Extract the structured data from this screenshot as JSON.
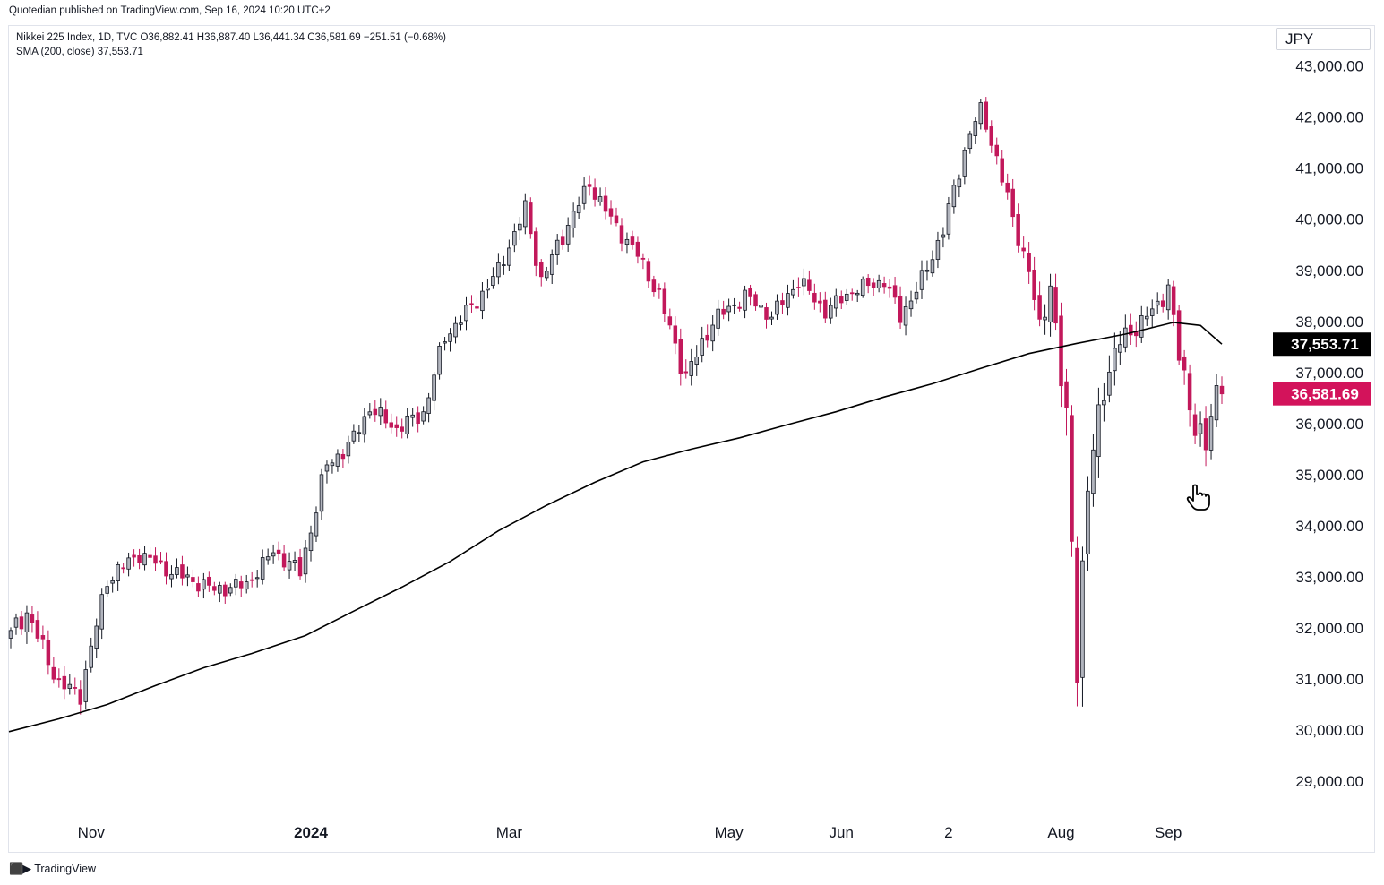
{
  "header": {
    "published": "Quotedian published on TradingView.com, Sep 16, 2024 10:20 UTC+2"
  },
  "legend": {
    "line1": "Nikkei 225 Index, 1D, TVC  O36,882.41  H36,887.40  L36,441.34  C36,581.69  −251.51 (−0.68%)",
    "line2": "SMA (200, close)  37,553.71"
  },
  "currency": "JPY",
  "footer": {
    "logo_icon": "tradingview-logo-icon",
    "brand": "TradingView"
  },
  "colors": {
    "up": "#b2b5be",
    "down": "#c2185b",
    "wick": "#131722",
    "sma": "#000000",
    "sma_label_bg": "#000000",
    "price_label_bg": "#d3135b"
  },
  "chart_data": {
    "type": "candlestick",
    "title": "Nikkei 225 Index, 1D, TVC",
    "ylim": [
      28300,
      43800
    ],
    "y_ticks": [
      29000,
      30000,
      31000,
      32000,
      33000,
      34000,
      35000,
      36000,
      37000,
      38000,
      39000,
      40000,
      41000,
      42000,
      43000
    ],
    "y_tick_labels": [
      "29,000.00",
      "30,000.00",
      "31,000.00",
      "32,000.00",
      "33,000.00",
      "34,000.00",
      "35,000.00",
      "36,000.00",
      "37,000.00",
      "38,000.00",
      "39,000.00",
      "40,000.00",
      "41,000.00",
      "42,000.00",
      "43,000.00"
    ],
    "x_labels": [
      {
        "label": "Nov",
        "bar": 15,
        "bold": false
      },
      {
        "label": "2024",
        "bar": 56,
        "bold": true
      },
      {
        "label": "Mar",
        "bar": 93,
        "bold": false
      },
      {
        "label": "May",
        "bar": 134,
        "bold": false
      },
      {
        "label": "Jun",
        "bar": 155,
        "bold": false
      },
      {
        "label": "2",
        "bar": 175,
        "bold": false
      },
      {
        "label": "Aug",
        "bar": 196,
        "bold": false
      },
      {
        "label": "Sep",
        "bar": 216,
        "bold": false
      }
    ],
    "bars": 227,
    "last_close": 36581.69,
    "last_close_label": "36,581.69",
    "sma_value": 37553.71,
    "sma_label": "37,553.71",
    "anchors": [
      [
        0,
        31950,
        1.0
      ],
      [
        3,
        32300,
        1.2
      ],
      [
        9,
        30900,
        1.0
      ],
      [
        13,
        30700,
        1.0
      ],
      [
        18,
        32950,
        1.1
      ],
      [
        24,
        33450,
        0.9
      ],
      [
        30,
        33100,
        0.9
      ],
      [
        38,
        32750,
        0.9
      ],
      [
        44,
        32850,
        0.9
      ],
      [
        49,
        33500,
        0.8
      ],
      [
        54,
        33100,
        1.0
      ],
      [
        59,
        35200,
        1.2
      ],
      [
        63,
        35550,
        0.9
      ],
      [
        67,
        36300,
        0.9
      ],
      [
        72,
        35900,
        0.9
      ],
      [
        77,
        36200,
        1.0
      ],
      [
        81,
        37700,
        1.0
      ],
      [
        87,
        38400,
        0.9
      ],
      [
        91,
        39000,
        0.9
      ],
      [
        96,
        40200,
        1.0
      ],
      [
        99,
        38800,
        1.1
      ],
      [
        104,
        39900,
        1.0
      ],
      [
        108,
        40700,
        0.9
      ],
      [
        112,
        40000,
        0.9
      ],
      [
        117,
        39300,
        1.0
      ],
      [
        121,
        38500,
        1.0
      ],
      [
        126,
        36900,
        1.3
      ],
      [
        131,
        38000,
        1.0
      ],
      [
        137,
        38500,
        0.9
      ],
      [
        142,
        38100,
        0.9
      ],
      [
        147,
        38800,
        1.0
      ],
      [
        152,
        38200,
        0.9
      ],
      [
        157,
        38600,
        0.8
      ],
      [
        163,
        38800,
        0.9
      ],
      [
        166,
        38100,
        1.0
      ],
      [
        170,
        38800,
        1.0
      ],
      [
        174,
        39800,
        1.0
      ],
      [
        179,
        41700,
        1.0
      ],
      [
        181,
        42150,
        0.7
      ],
      [
        184,
        41200,
        0.9
      ],
      [
        187,
        40000,
        1.0
      ],
      [
        190,
        39000,
        1.2
      ],
      [
        192,
        37800,
        1.5
      ],
      [
        194,
        38800,
        1.6
      ],
      [
        197,
        35900,
        2.8
      ],
      [
        199,
        31500,
        3.2
      ],
      [
        201,
        34700,
        2.5
      ],
      [
        204,
        36800,
        2.0
      ],
      [
        207,
        37600,
        1.4
      ],
      [
        211,
        38000,
        1.0
      ],
      [
        214,
        38300,
        1.2
      ],
      [
        216,
        38700,
        1.0
      ],
      [
        218,
        37300,
        1.6
      ],
      [
        221,
        36000,
        1.8
      ],
      [
        223,
        35500,
        1.6
      ],
      [
        225,
        36700,
        1.2
      ],
      [
        226,
        36581.69,
        1.0
      ]
    ],
    "sma_points": [
      [
        0,
        29970
      ],
      [
        9,
        30220
      ],
      [
        18,
        30500
      ],
      [
        27,
        30870
      ],
      [
        36,
        31220
      ],
      [
        45,
        31500
      ],
      [
        55,
        31850
      ],
      [
        64,
        32330
      ],
      [
        73,
        32800
      ],
      [
        82,
        33300
      ],
      [
        91,
        33900
      ],
      [
        100,
        34400
      ],
      [
        109,
        34850
      ],
      [
        118,
        35250
      ],
      [
        127,
        35500
      ],
      [
        136,
        35720
      ],
      [
        145,
        35980
      ],
      [
        154,
        36230
      ],
      [
        163,
        36520
      ],
      [
        172,
        36780
      ],
      [
        181,
        37080
      ],
      [
        190,
        37370
      ],
      [
        199,
        37570
      ],
      [
        208,
        37750
      ],
      [
        217,
        37980
      ],
      [
        222,
        37920
      ],
      [
        226,
        37553.71
      ]
    ]
  }
}
